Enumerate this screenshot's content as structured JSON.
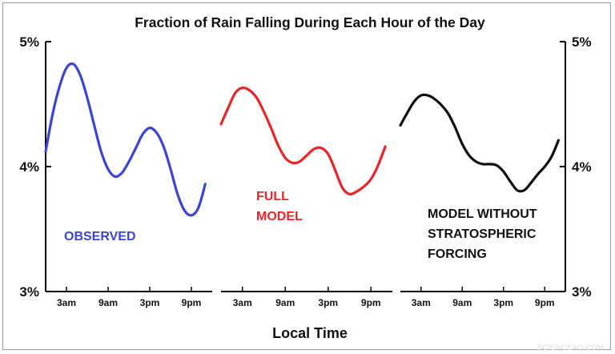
{
  "chart_data": {
    "type": "line",
    "title": "Fraction of Rain Falling During Each Hour of the Day",
    "xlabel": "Local Time",
    "ylabel": "",
    "ylim": [
      3,
      5
    ],
    "y_ticks": [
      "3%",
      "4%",
      "5%"
    ],
    "x_ticks": [
      "3am",
      "9am",
      "3pm",
      "9pm"
    ],
    "x_tick_hours": [
      3,
      9,
      15,
      21
    ],
    "x_range_hours": [
      0,
      24
    ],
    "watermark": "SCIENCEAQ.COM",
    "grid": false,
    "legend": "none",
    "panels": [
      {
        "label_lines": [
          "OBSERVED"
        ],
        "color": "#3a45d0",
        "label_position": "bottom-left",
        "x": [
          0,
          1,
          2,
          3,
          4,
          5,
          6,
          7,
          8,
          9,
          10,
          11,
          12,
          13,
          14,
          15,
          16,
          17,
          18,
          19,
          20,
          21,
          22,
          23
        ],
        "values": [
          4.12,
          4.42,
          4.64,
          4.79,
          4.82,
          4.73,
          4.55,
          4.33,
          4.12,
          3.98,
          3.92,
          3.95,
          4.04,
          4.15,
          4.26,
          4.31,
          4.27,
          4.16,
          3.98,
          3.78,
          3.65,
          3.61,
          3.67,
          3.86
        ]
      },
      {
        "label_lines": [
          "FULL",
          "MODEL"
        ],
        "color": "#e8262a",
        "label_position": "middle-left",
        "x": [
          0,
          1,
          2,
          3,
          4,
          5,
          6,
          7,
          8,
          9,
          10,
          11,
          12,
          13,
          14,
          15,
          16,
          17,
          18,
          19,
          20,
          21,
          22,
          23
        ],
        "values": [
          4.34,
          4.47,
          4.59,
          4.63,
          4.61,
          4.55,
          4.44,
          4.31,
          4.17,
          4.07,
          4.03,
          4.04,
          4.09,
          4.14,
          4.15,
          4.1,
          3.97,
          3.83,
          3.78,
          3.8,
          3.84,
          3.9,
          4.01,
          4.16
        ]
      },
      {
        "label_lines": [
          "MODEL WITHOUT",
          "STRATOSPHERIC",
          "FORCING"
        ],
        "color": "#111111",
        "label_position": "middle-right",
        "x": [
          0,
          1,
          2,
          3,
          4,
          5,
          6,
          7,
          8,
          9,
          10,
          11,
          12,
          13,
          14,
          15,
          16,
          17,
          18,
          19,
          20,
          21,
          22,
          23
        ],
        "values": [
          4.33,
          4.43,
          4.52,
          4.57,
          4.57,
          4.54,
          4.49,
          4.42,
          4.31,
          4.18,
          4.09,
          4.04,
          4.02,
          4.02,
          4.01,
          3.96,
          3.88,
          3.81,
          3.81,
          3.87,
          3.94,
          4.0,
          4.08,
          4.21
        ]
      }
    ]
  }
}
